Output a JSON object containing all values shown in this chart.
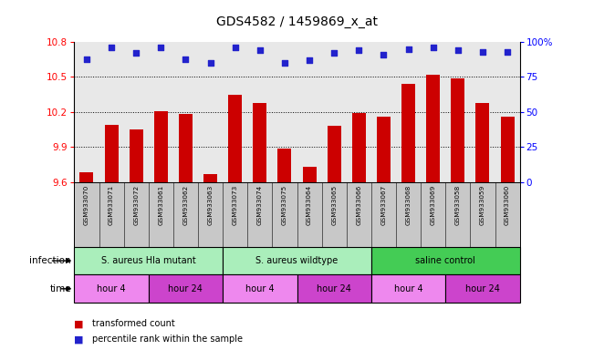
{
  "title": "GDS4582 / 1459869_x_at",
  "samples": [
    "GSM933070",
    "GSM933071",
    "GSM933072",
    "GSM933061",
    "GSM933062",
    "GSM933063",
    "GSM933073",
    "GSM933074",
    "GSM933075",
    "GSM933064",
    "GSM933065",
    "GSM933066",
    "GSM933067",
    "GSM933068",
    "GSM933069",
    "GSM933058",
    "GSM933059",
    "GSM933060"
  ],
  "bar_values": [
    9.68,
    10.09,
    10.05,
    10.21,
    10.18,
    9.67,
    10.35,
    10.28,
    9.89,
    9.73,
    10.08,
    10.19,
    10.16,
    10.44,
    10.52,
    10.49,
    10.28,
    10.16
  ],
  "dot_values": [
    88,
    96,
    92,
    96,
    88,
    85,
    96,
    94,
    85,
    87,
    92,
    94,
    91,
    95,
    96,
    94,
    93,
    93
  ],
  "ylim_left": [
    9.6,
    10.8
  ],
  "ylim_right": [
    0,
    100
  ],
  "yticks_left": [
    9.6,
    9.9,
    10.2,
    10.5,
    10.8
  ],
  "yticks_right": [
    0,
    25,
    50,
    75,
    100
  ],
  "bar_color": "#cc0000",
  "dot_color": "#2222cc",
  "plot_bg": "#e8e8e8",
  "tick_bg": "#c8c8c8",
  "infection_groups": [
    {
      "label": "S. aureus Hla mutant",
      "start": 0,
      "end": 6,
      "color": "#aaeebb"
    },
    {
      "label": "S. aureus wildtype",
      "start": 6,
      "end": 12,
      "color": "#aaeebb"
    },
    {
      "label": "saline control",
      "start": 12,
      "end": 18,
      "color": "#44cc55"
    }
  ],
  "time_groups": [
    {
      "label": "hour 4",
      "start": 0,
      "end": 3,
      "color": "#ee88ee"
    },
    {
      "label": "hour 24",
      "start": 3,
      "end": 6,
      "color": "#cc44cc"
    },
    {
      "label": "hour 4",
      "start": 6,
      "end": 9,
      "color": "#ee88ee"
    },
    {
      "label": "hour 24",
      "start": 9,
      "end": 12,
      "color": "#cc44cc"
    },
    {
      "label": "hour 4",
      "start": 12,
      "end": 15,
      "color": "#ee88ee"
    },
    {
      "label": "hour 24",
      "start": 15,
      "end": 18,
      "color": "#cc44cc"
    }
  ],
  "grid_yticks": [
    9.9,
    10.2,
    10.5
  ],
  "legend": [
    {
      "label": "transformed count",
      "color": "#cc0000"
    },
    {
      "label": "percentile rank within the sample",
      "color": "#2222cc"
    }
  ]
}
